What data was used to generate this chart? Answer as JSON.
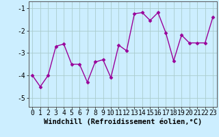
{
  "x": [
    0,
    1,
    2,
    3,
    4,
    5,
    6,
    7,
    8,
    9,
    10,
    11,
    12,
    13,
    14,
    15,
    16,
    17,
    18,
    19,
    20,
    21,
    22,
    23
  ],
  "y": [
    -4.0,
    -4.5,
    -4.0,
    -2.7,
    -2.6,
    -3.5,
    -3.5,
    -4.3,
    -3.4,
    -3.3,
    -4.1,
    -2.65,
    -2.9,
    -1.25,
    -1.2,
    -1.55,
    -1.2,
    -2.1,
    -3.35,
    -2.2,
    -2.55,
    -2.55,
    -2.55,
    -1.4
  ],
  "line_color": "#990099",
  "marker": "D",
  "markersize": 2.5,
  "linewidth": 1.0,
  "bg_color": "#cceeff",
  "grid_color": "#aacccc",
  "xlabel": "Windchill (Refroidissement éolien,°C)",
  "xlabel_fontsize": 7.5,
  "tick_fontsize": 7,
  "ylim": [
    -5.4,
    -0.7
  ],
  "xlim": [
    -0.5,
    23.5
  ],
  "yticks": [
    -5,
    -4,
    -3,
    -2,
    -1
  ],
  "xticks": [
    0,
    1,
    2,
    3,
    4,
    5,
    6,
    7,
    8,
    9,
    10,
    11,
    12,
    13,
    14,
    15,
    16,
    17,
    18,
    19,
    20,
    21,
    22,
    23
  ],
  "font_family": "monospace"
}
